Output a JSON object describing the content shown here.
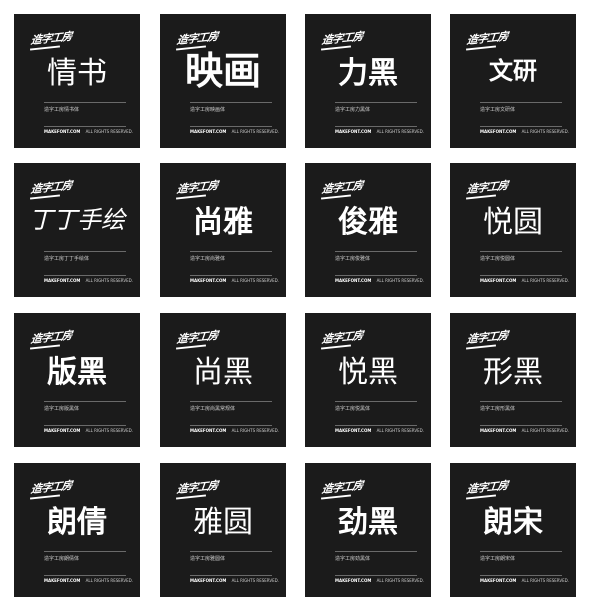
{
  "brand_label": "造字工房",
  "site": "MAKEFONT.COM",
  "rights": "ALL RIGHTS RESERVED.",
  "cards": [
    {
      "title": "情书",
      "desc": "造字工房情书体",
      "style": "light"
    },
    {
      "title": "映画",
      "desc": "造字工房映画体",
      "style": "heavy big"
    },
    {
      "title": "力黑",
      "desc": "造字工房力黑体",
      "style": "heavy"
    },
    {
      "title": "文研",
      "desc": "造字工房文研体",
      "style": "heavy small"
    },
    {
      "title": "丁丁手绘",
      "desc": "造字工房丁丁手绘体",
      "style": "hand small"
    },
    {
      "title": "尚雅",
      "desc": "造字工房尚雅体",
      "style": "serif"
    },
    {
      "title": "俊雅",
      "desc": "造字工房俊雅体",
      "style": "serif"
    },
    {
      "title": "悦圆",
      "desc": "造字工房悦圆体",
      "style": "light"
    },
    {
      "title": "版黑",
      "desc": "造字工房版黑体",
      "style": "heavy"
    },
    {
      "title": "尚黑",
      "desc": "造字工房尚黑常规体",
      "style": "light"
    },
    {
      "title": "悦黑",
      "desc": "造字工房悦黑体",
      "style": "light"
    },
    {
      "title": "形黑",
      "desc": "造字工房形黑体",
      "style": "light"
    },
    {
      "title": "朗倩",
      "desc": "造字工房朗倩体",
      "style": "heavy"
    },
    {
      "title": "雅圆",
      "desc": "造字工房雅圆体",
      "style": "light"
    },
    {
      "title": "劲黑",
      "desc": "造字工房劲黑体",
      "style": "heavy"
    },
    {
      "title": "朗宋",
      "desc": "造字工房朗宋体",
      "style": "serif"
    }
  ]
}
